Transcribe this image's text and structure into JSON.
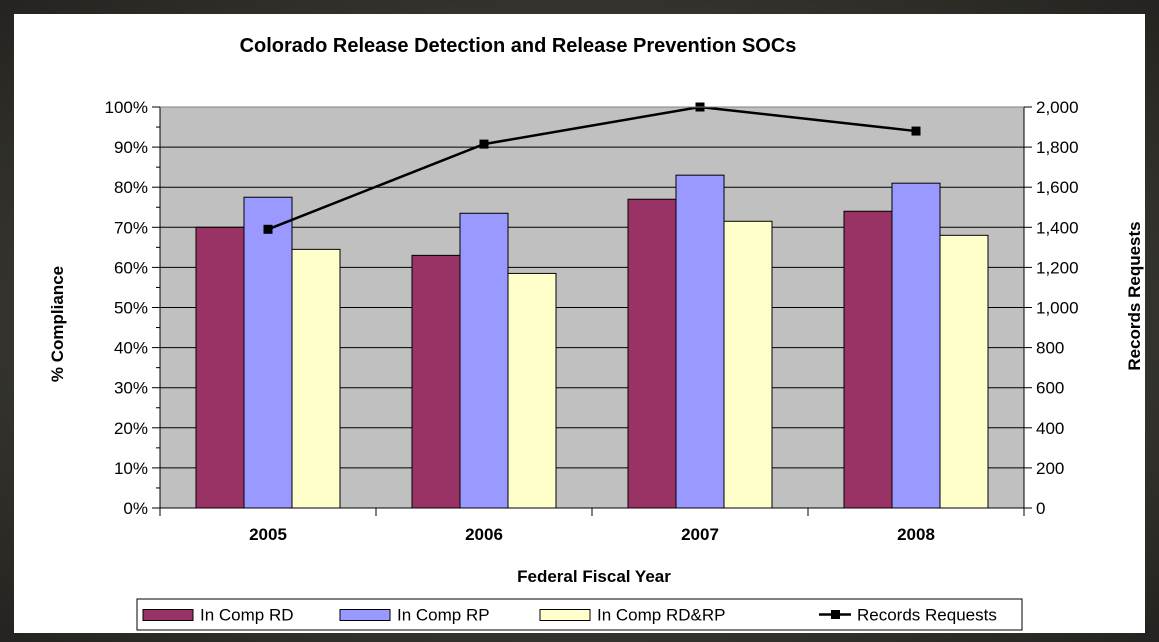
{
  "chart_data": {
    "type": "bar",
    "title": "Colorado Release Detection and Release Prevention SOCs",
    "xlabel": "Federal Fiscal Year",
    "ylabel": "% Compliance",
    "y2label": "Records Requests",
    "categories": [
      "2005",
      "2006",
      "2007",
      "2008"
    ],
    "ylim": [
      0,
      100
    ],
    "y_ticks": [
      "0%",
      "10%",
      "20%",
      "30%",
      "40%",
      "50%",
      "60%",
      "70%",
      "80%",
      "90%",
      "100%"
    ],
    "y2lim": [
      0,
      2000
    ],
    "y2_ticks": [
      "0",
      "200",
      "400",
      "600",
      "800",
      "1,000",
      "1,200",
      "1,400",
      "1,600",
      "1,800",
      "2,000"
    ],
    "series": [
      {
        "name": "In Comp RD",
        "type": "bar",
        "axis": "left",
        "color": "#993366",
        "values": [
          70,
          63,
          77,
          74
        ]
      },
      {
        "name": "In Comp RP",
        "type": "bar",
        "axis": "left",
        "color": "#9999FF",
        "values": [
          77.5,
          73.5,
          83,
          81
        ]
      },
      {
        "name": "In Comp RD&RP",
        "type": "bar",
        "axis": "left",
        "color": "#FFFFCC",
        "values": [
          64.5,
          58.5,
          71.5,
          68
        ]
      },
      {
        "name": "Records Requests",
        "type": "line",
        "axis": "right",
        "color": "#000000",
        "values": [
          1390,
          1815,
          2000,
          1880
        ]
      }
    ],
    "plot_background": "#C0C0C0",
    "grid": "horizontal",
    "legend_position": "bottom"
  }
}
